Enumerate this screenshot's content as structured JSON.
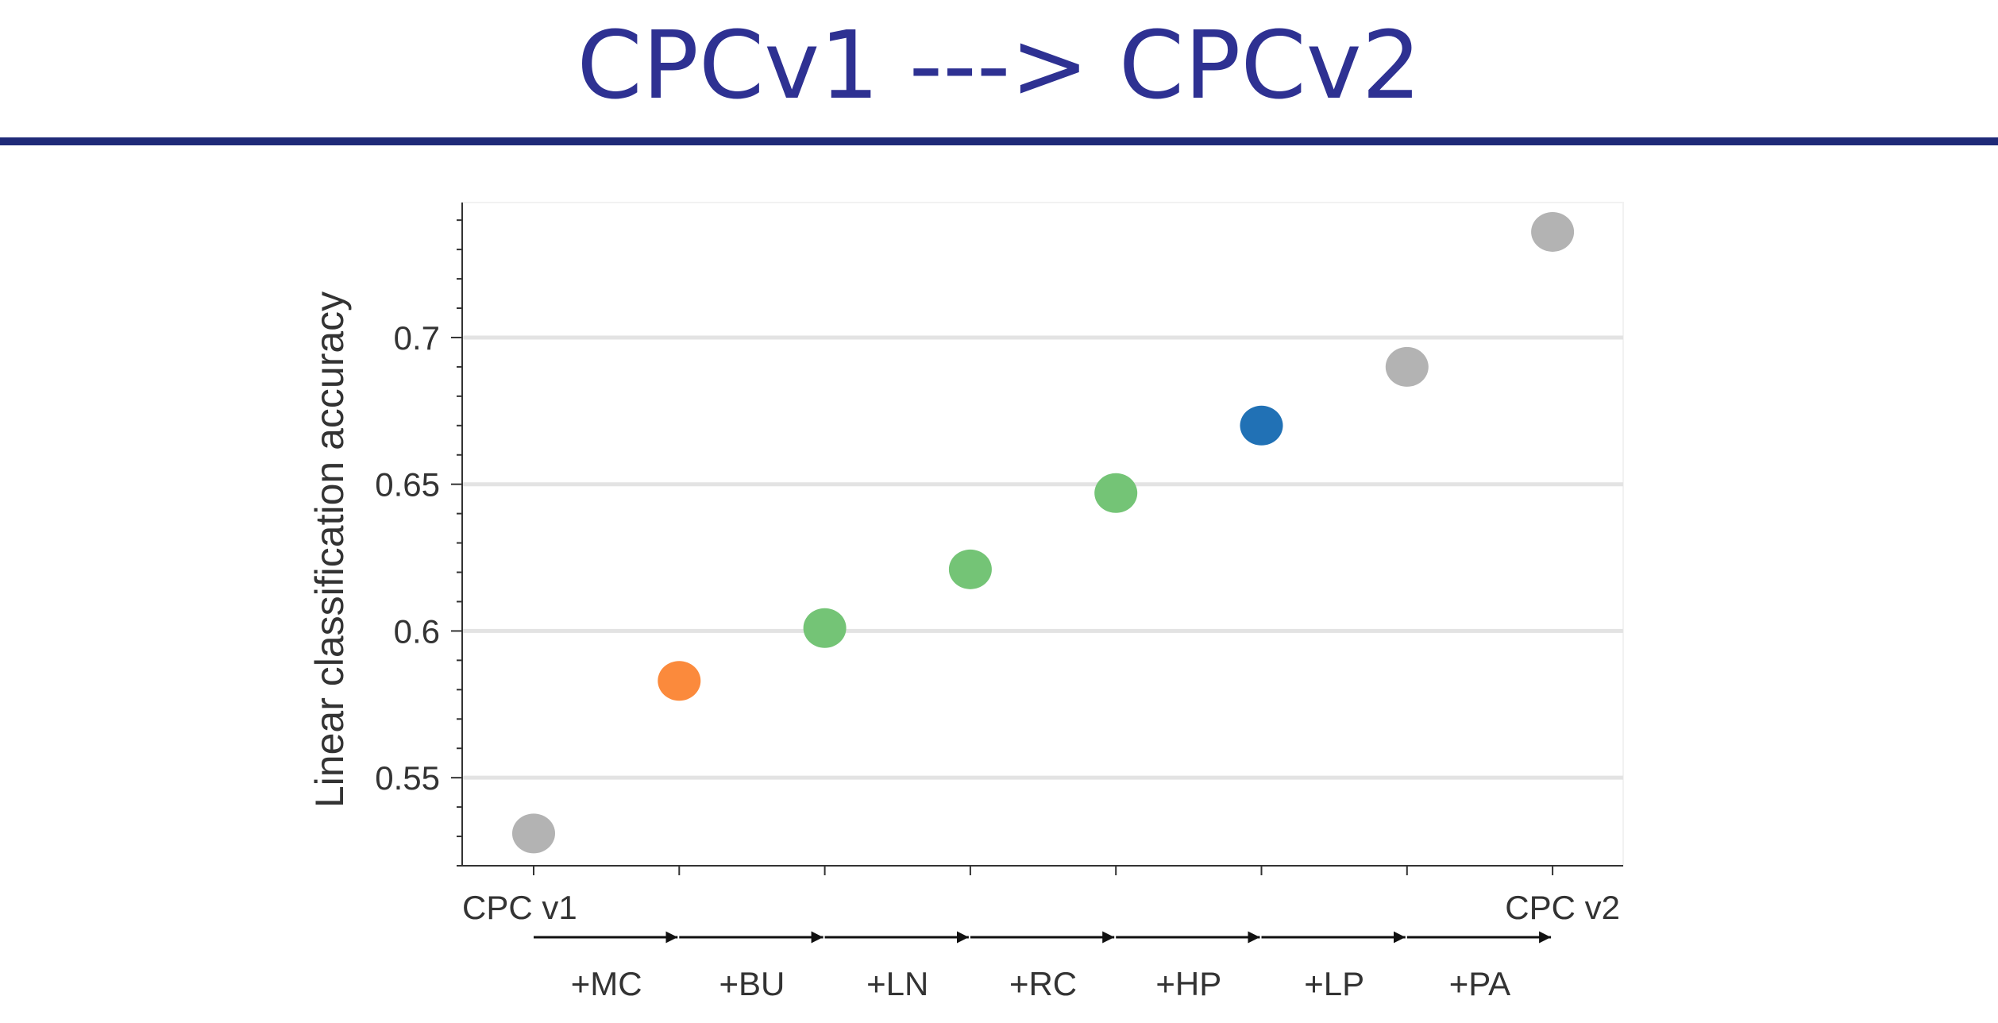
{
  "slide": {
    "title": "CPCv1 ---> CPCv2"
  },
  "chart_data": {
    "type": "scatter",
    "ylabel": "Linear classification accuracy",
    "ylim": [
      0.52,
      0.746
    ],
    "yticks": [
      0.55,
      0.6,
      0.65,
      0.7
    ],
    "ytick_labels": [
      "0.55",
      "0.6",
      "0.65",
      "0.7"
    ],
    "grid": true,
    "x_start_label": "CPC v1",
    "x_end_label": "CPC v2",
    "steps": [
      "+MC",
      "+BU",
      "+LN",
      "+RC",
      "+HP",
      "+LP",
      "+PA"
    ],
    "points": [
      {
        "x": 0,
        "y": 0.531,
        "color": "#b3b3b3"
      },
      {
        "x": 1,
        "y": 0.583,
        "color": "#fb8a3c"
      },
      {
        "x": 2,
        "y": 0.601,
        "color": "#74c476"
      },
      {
        "x": 3,
        "y": 0.621,
        "color": "#74c476"
      },
      {
        "x": 4,
        "y": 0.647,
        "color": "#74c476"
      },
      {
        "x": 5,
        "y": 0.67,
        "color": "#2171b5"
      },
      {
        "x": 6,
        "y": 0.69,
        "color": "#b3b3b3"
      },
      {
        "x": 7,
        "y": 0.736,
        "color": "#b3b3b3"
      }
    ],
    "colors": {
      "axis": "#333333",
      "grid": "#e3e3e3"
    }
  }
}
